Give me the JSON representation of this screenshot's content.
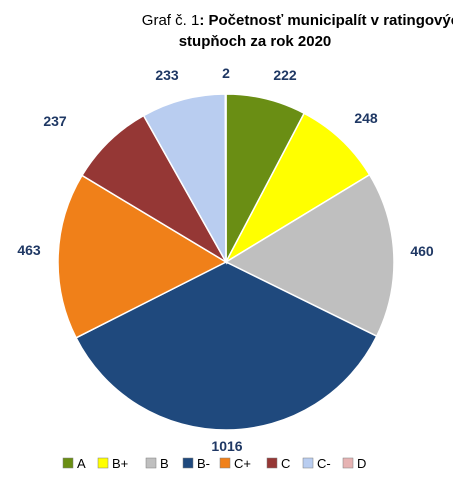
{
  "chart_data": {
    "type": "pie",
    "title_prefix": "Graf č. 1",
    "title_line1": ": Početnosť municipalít v ratingových",
    "title_line2": "stupňoch za rok 2020",
    "categories": [
      "A",
      "B+",
      "B",
      "B-",
      "C+",
      "C",
      "C-",
      "D"
    ],
    "values": [
      222,
      248,
      460,
      1016,
      463,
      237,
      233,
      2
    ],
    "colors": [
      "#6a8e14",
      "#ffff00",
      "#bfbfbf",
      "#1f497d",
      "#f08019",
      "#953735",
      "#b9cdf0",
      "#e6b3b3"
    ],
    "legend_position": "bottom"
  }
}
